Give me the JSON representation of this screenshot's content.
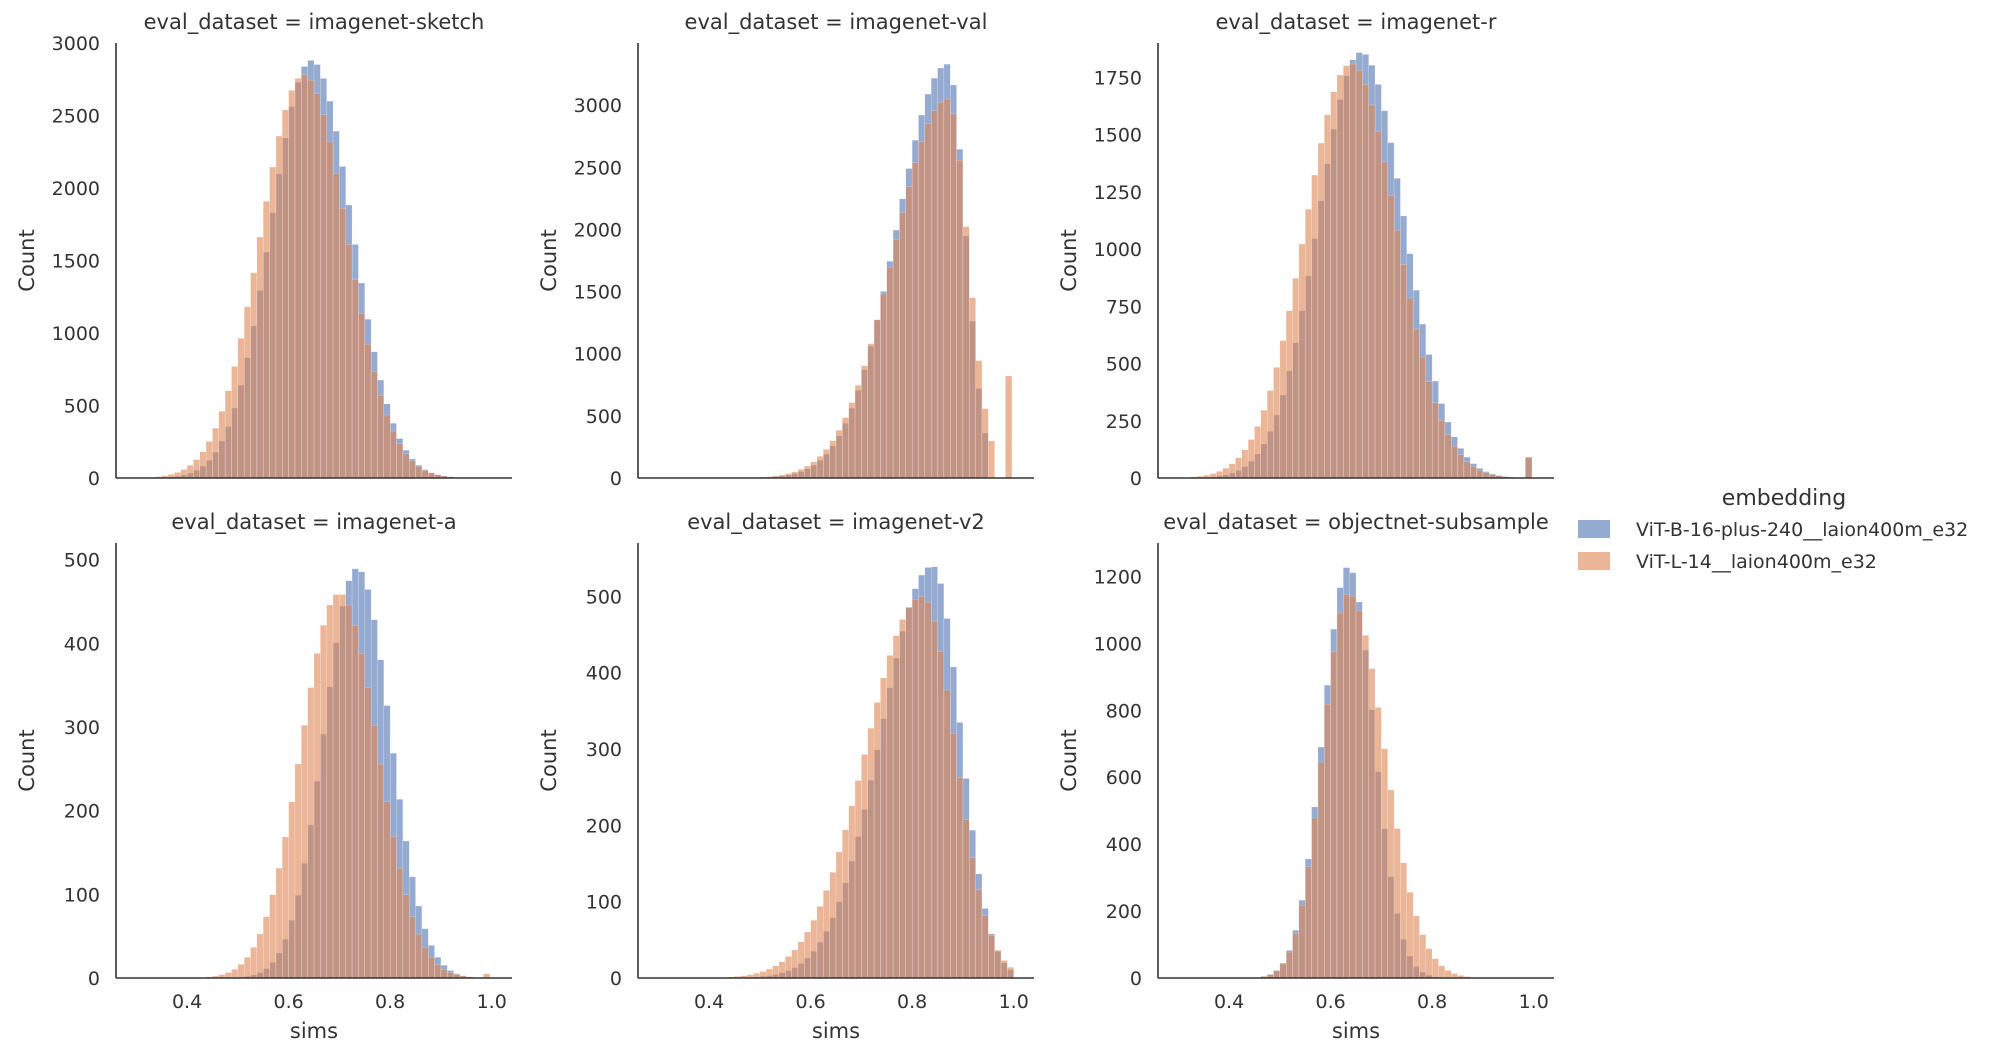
{
  "legend": {
    "title": "embedding",
    "items": [
      {
        "label": "ViT-B-16-plus-240__laion400m_e32",
        "color": "#4c72b0"
      },
      {
        "label": "ViT-L-14__laion400m_e32",
        "color": "#dd8452"
      }
    ]
  },
  "chart_data": [
    {
      "type": "bar",
      "title": "eval_dataset = imagenet-sketch",
      "xlabel": "",
      "ylabel": "Count",
      "xlim": [
        0.26,
        1.04
      ],
      "ylim": [
        0,
        3000
      ],
      "xticks": [],
      "yticks": [
        0,
        500,
        1000,
        1500,
        2000,
        2500,
        3000
      ],
      "bins": {
        "start": 0.3,
        "width": 0.0125
      },
      "series": [
        {
          "name": "ViT-B-16-plus-240__laion400m_e32",
          "mean": 0.645,
          "sd": 0.08,
          "peak": 2880,
          "outlier": null
        },
        {
          "name": "ViT-L-14__laion400m_e32",
          "mean": 0.63,
          "sd": 0.085,
          "peak": 2780,
          "outlier": null
        }
      ]
    },
    {
      "type": "bar",
      "title": "eval_dataset = imagenet-val",
      "xlabel": "",
      "ylabel": "Count",
      "xlim": [
        0.26,
        1.04
      ],
      "ylim": [
        0,
        3500
      ],
      "xticks": [],
      "yticks": [
        0,
        500,
        1000,
        1500,
        2000,
        2500,
        3000
      ],
      "bins": {
        "start": 0.3,
        "width": 0.0125
      },
      "series": [
        {
          "name": "ViT-B-16-plus-240__laion400m_e32",
          "mean": 0.87,
          "sd_left": 0.1,
          "sd_right": 0.035,
          "peak": 3330,
          "cutoff": 0.955,
          "outlier": null
        },
        {
          "name": "ViT-L-14__laion400m_e32",
          "mean": 0.87,
          "sd_left": 0.105,
          "sd_right": 0.04,
          "peak": 3050,
          "cutoff": 0.965,
          "outlier": {
            "x": 0.99,
            "value": 820
          }
        }
      ]
    },
    {
      "type": "bar",
      "title": "eval_dataset = imagenet-r",
      "xlabel": "",
      "ylabel": "Count",
      "xlim": [
        0.26,
        1.04
      ],
      "ylim": [
        0,
        1900
      ],
      "xticks": [],
      "yticks": [
        0,
        250,
        500,
        750,
        1000,
        1250,
        1500,
        1750
      ],
      "bins": {
        "start": 0.3,
        "width": 0.0125
      },
      "series": [
        {
          "name": "ViT-B-16-plus-240__laion400m_e32",
          "mean": 0.66,
          "sd": 0.085,
          "peak": 1860,
          "outlier": {
            "x": 0.99,
            "value": 90
          }
        },
        {
          "name": "ViT-L-14__laion400m_e32",
          "mean": 0.64,
          "sd": 0.09,
          "peak": 1810,
          "outlier": {
            "x": 0.99,
            "value": 90
          }
        }
      ]
    },
    {
      "type": "bar",
      "title": "eval_dataset = imagenet-a",
      "xlabel": "sims",
      "ylabel": "Count",
      "xlim": [
        0.26,
        1.04
      ],
      "ylim": [
        0,
        520
      ],
      "xticks": [
        0.4,
        0.6,
        0.8,
        1.0
      ],
      "yticks": [
        0,
        100,
        200,
        300,
        400,
        500
      ],
      "bins": {
        "start": 0.3,
        "width": 0.0125
      },
      "series": [
        {
          "name": "ViT-B-16-plus-240__laion400m_e32",
          "mean": 0.735,
          "sd": 0.065,
          "peak": 490,
          "outlier": null
        },
        {
          "name": "ViT-L-14__laion400m_e32",
          "mean": 0.7,
          "sd": 0.075,
          "peak": 460,
          "outlier": {
            "x": 0.99,
            "value": 5
          }
        }
      ]
    },
    {
      "type": "bar",
      "title": "eval_dataset = imagenet-v2",
      "xlabel": "sims",
      "ylabel": "Count",
      "xlim": [
        0.26,
        1.04
      ],
      "ylim": [
        0,
        570
      ],
      "xticks": [
        0.4,
        0.6,
        0.8,
        1.0
      ],
      "yticks": [
        0,
        100,
        200,
        300,
        400,
        500
      ],
      "bins": {
        "start": 0.3,
        "width": 0.0125
      },
      "series": [
        {
          "name": "ViT-B-16-plus-240__laion400m_e32",
          "mean": 0.84,
          "sd_left": 0.1,
          "sd_right": 0.055,
          "peak": 540,
          "outlier": null
        },
        {
          "name": "ViT-L-14__laion400m_e32",
          "mean": 0.82,
          "sd_left": 0.11,
          "sd_right": 0.065,
          "peak": 500,
          "outlier": null
        }
      ]
    },
    {
      "type": "bar",
      "title": "eval_dataset = objectnet-subsample",
      "xlabel": "sims",
      "ylabel": "Count",
      "xlim": [
        0.26,
        1.04
      ],
      "ylim": [
        0,
        1300
      ],
      "xticks": [
        0.4,
        0.6,
        0.8,
        1.0
      ],
      "yticks": [
        0,
        200,
        400,
        600,
        800,
        1000,
        1200
      ],
      "bins": {
        "start": 0.3,
        "width": 0.0125
      },
      "series": [
        {
          "name": "ViT-B-16-plus-240__laion400m_e32",
          "mean": 0.635,
          "sd": 0.05,
          "peak": 1230,
          "outlier": null
        },
        {
          "name": "ViT-L-14__laion400m_e32",
          "mean": 0.635,
          "sd_left": 0.05,
          "sd_right": 0.07,
          "peak": 1150,
          "outlier": null
        }
      ]
    }
  ]
}
